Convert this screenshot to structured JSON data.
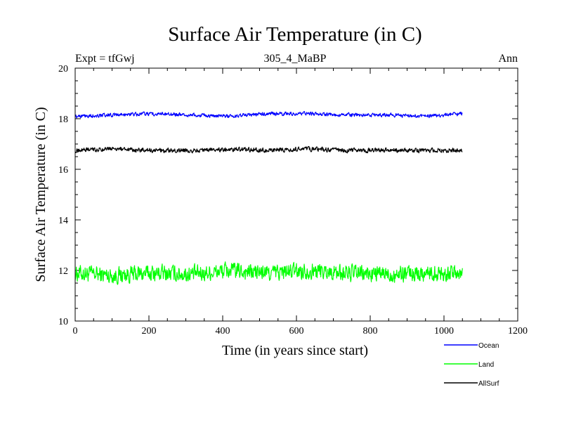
{
  "chart_data": {
    "type": "line",
    "title": "Surface Air Temperature (in C)",
    "subtitle": "305_4_MaBP",
    "left_label": "Expt = tfGwj",
    "right_label": "Ann",
    "xlabel": "Time (in years since start)",
    "ylabel": "Surface Air Temperature (in C)",
    "xlim": [
      0,
      1200
    ],
    "ylim": [
      10,
      20
    ],
    "xticks": [
      0,
      200,
      400,
      600,
      800,
      1000,
      1200
    ],
    "yticks": [
      10,
      12,
      14,
      16,
      18,
      20
    ],
    "x_range": [
      0,
      1050
    ],
    "grid": false,
    "legend_position": "bottom-right, outside plot",
    "series": [
      {
        "name": "Ocean",
        "color": "#0000ff",
        "mean": 18.15,
        "noise_amplitude": 0.1,
        "values": [
          18.1,
          18.15,
          18.2,
          18.15,
          18.1,
          18.2,
          18.2,
          18.15,
          18.15,
          18.1,
          18.2
        ]
      },
      {
        "name": "Land",
        "color": "#00ff00",
        "mean": 11.9,
        "noise_amplitude": 0.45,
        "values": [
          11.9,
          11.8,
          11.9,
          11.85,
          12.0,
          11.9,
          12.0,
          11.9,
          11.85,
          11.9,
          11.9
        ]
      },
      {
        "name": "AllSurf",
        "color": "#000000",
        "mean": 16.75,
        "noise_amplitude": 0.12,
        "values": [
          16.75,
          16.8,
          16.75,
          16.75,
          16.8,
          16.75,
          16.8,
          16.75,
          16.75,
          16.75,
          16.75
        ]
      }
    ]
  }
}
